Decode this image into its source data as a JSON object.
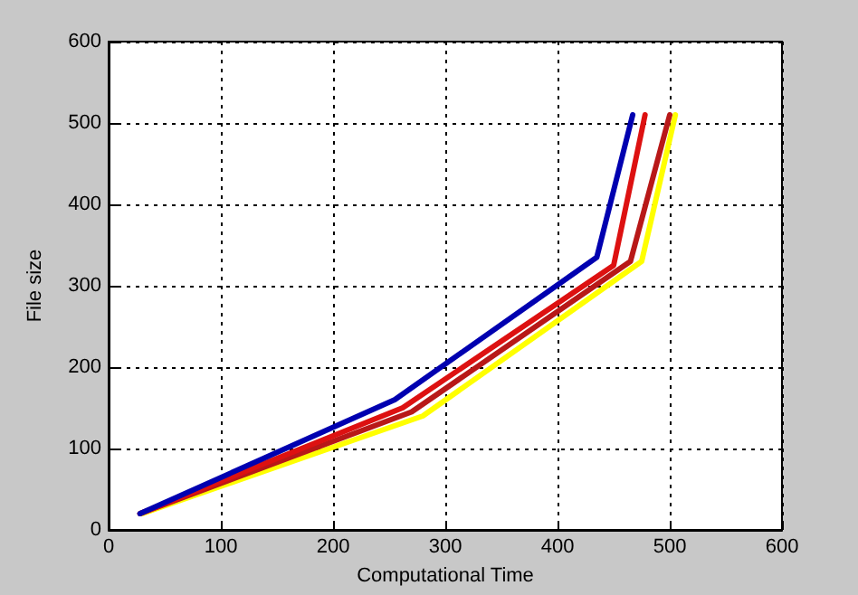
{
  "chart_data": {
    "type": "line",
    "xlabel": "Computational Time",
    "ylabel": "File size",
    "xlim": [
      0,
      600
    ],
    "xticks": [
      0,
      100,
      200,
      300,
      400,
      500,
      600
    ],
    "ylim": [
      0,
      600
    ],
    "yticks": [
      0,
      100,
      200,
      300,
      400,
      500,
      600
    ],
    "grid": true,
    "line_style": "solid",
    "series": [
      {
        "color": "#ffff00",
        "x": [
          30,
          280,
          475,
          505
        ],
        "values": [
          20,
          140,
          330,
          510
        ]
      },
      {
        "color": "#b81818",
        "x": [
          28,
          270,
          465,
          500
        ],
        "values": [
          20,
          145,
          330,
          510
        ]
      },
      {
        "color": "#dd1111",
        "x": [
          28,
          262,
          450,
          478
        ],
        "values": [
          20,
          150,
          325,
          510
        ]
      },
      {
        "color": "#0000b0",
        "x": [
          28,
          255,
          435,
          467
        ],
        "values": [
          20,
          160,
          335,
          510
        ]
      }
    ]
  }
}
